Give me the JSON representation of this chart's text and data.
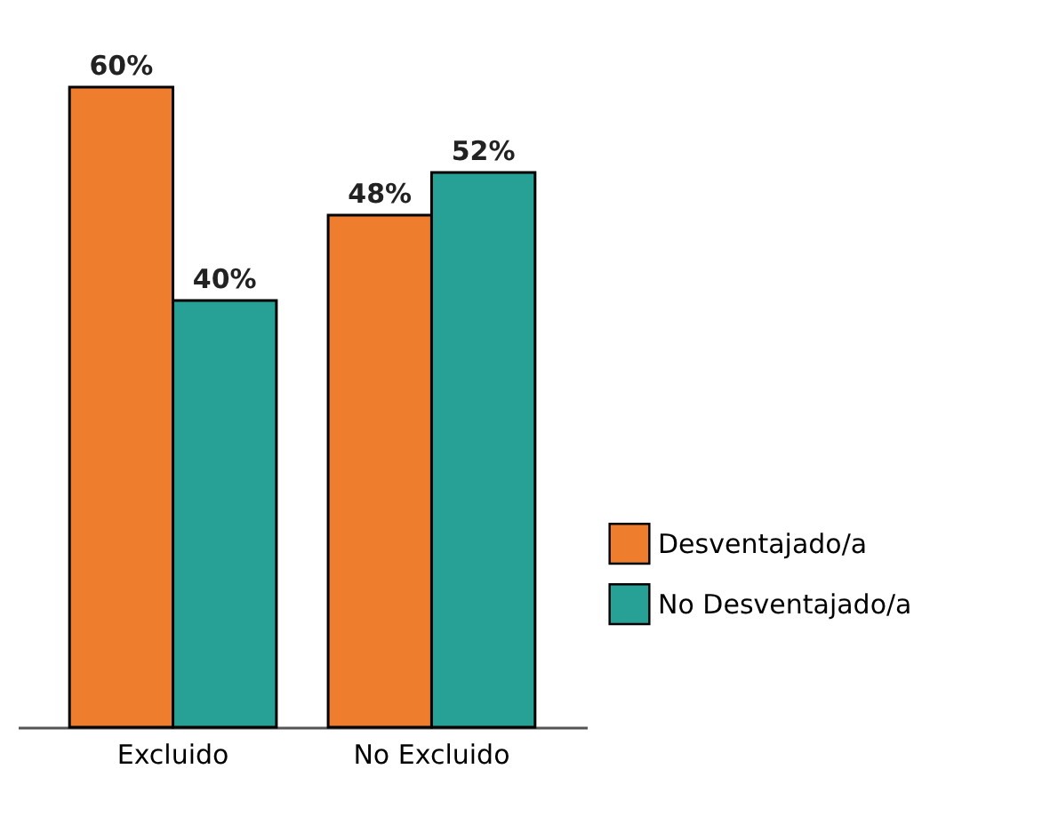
{
  "chart_data": {
    "type": "bar",
    "categories": [
      "Excluido",
      "No Excluido"
    ],
    "series": [
      {
        "name": "Desventajado/a",
        "color": "#ee7d2e",
        "values": [
          60,
          48
        ],
        "value_labels": [
          "60%",
          "48%"
        ]
      },
      {
        "name": "No Desventajado/a",
        "color": "#27a096",
        "values": [
          40,
          52
        ],
        "value_labels": [
          "40%",
          "52%"
        ]
      }
    ],
    "legend": "right"
  }
}
